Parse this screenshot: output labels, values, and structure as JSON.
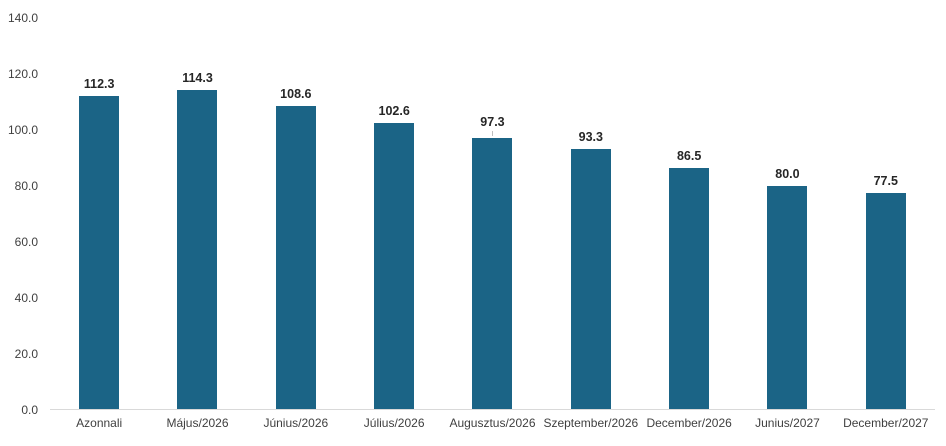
{
  "chart_data": {
    "type": "bar",
    "title": "",
    "xlabel": "",
    "ylabel": "",
    "categories": [
      "Azonnali",
      "Május/2026",
      "Június/2026",
      "Július/2026",
      "Augusztus/2026",
      "Szeptember/2026",
      "December/2026",
      "Junius/2027",
      "December/2027"
    ],
    "values": [
      112.3,
      114.3,
      108.6,
      102.6,
      97.3,
      93.3,
      86.5,
      80.0,
      77.5
    ],
    "data_labels": [
      "112.3",
      "114.3",
      "108.6",
      "102.6",
      "97.3",
      "93.3",
      "86.5",
      "80.0",
      "77.5"
    ],
    "ylim": [
      0,
      140
    ],
    "ytick_step": 20,
    "yticks": [
      "140.0",
      "120.0",
      "100.0",
      "80.0",
      "60.0",
      "40.0",
      "20.0",
      "0.0"
    ],
    "grid": "off",
    "legend": "none",
    "label_leader_line_category": "Augusztus/2026",
    "colors": {
      "bar": "#1b6486",
      "data_label": "#262626",
      "tick_label": "#3f3f3f",
      "axis_line": "#d9d9d9",
      "background": "#ffffff"
    }
  }
}
